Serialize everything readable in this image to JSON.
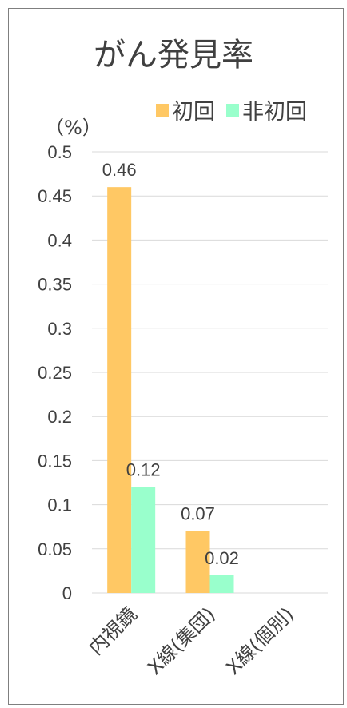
{
  "chart_data": {
    "type": "bar",
    "title": "がん発見率",
    "unit_label": "（%）",
    "categories": [
      "内視鏡",
      "X線(集団)",
      "X線(個別)"
    ],
    "series": [
      {
        "name": "初回",
        "color": "#FFC864",
        "values": [
          0.46,
          0.07,
          null
        ]
      },
      {
        "name": "非初回",
        "color": "#99FFCC",
        "values": [
          0.12,
          0.02,
          null
        ]
      }
    ],
    "data_labels": [
      [
        "0.46",
        "0.07",
        ""
      ],
      [
        "0.12",
        "0.02",
        ""
      ]
    ],
    "ylim": [
      0,
      0.5
    ],
    "yticks": [
      "0",
      "0.05",
      "0.1",
      "0.15",
      "0.2",
      "0.25",
      "0.3",
      "0.35",
      "0.4",
      "0.45",
      "0.5"
    ],
    "grid": true,
    "legend_position": "top-right"
  }
}
